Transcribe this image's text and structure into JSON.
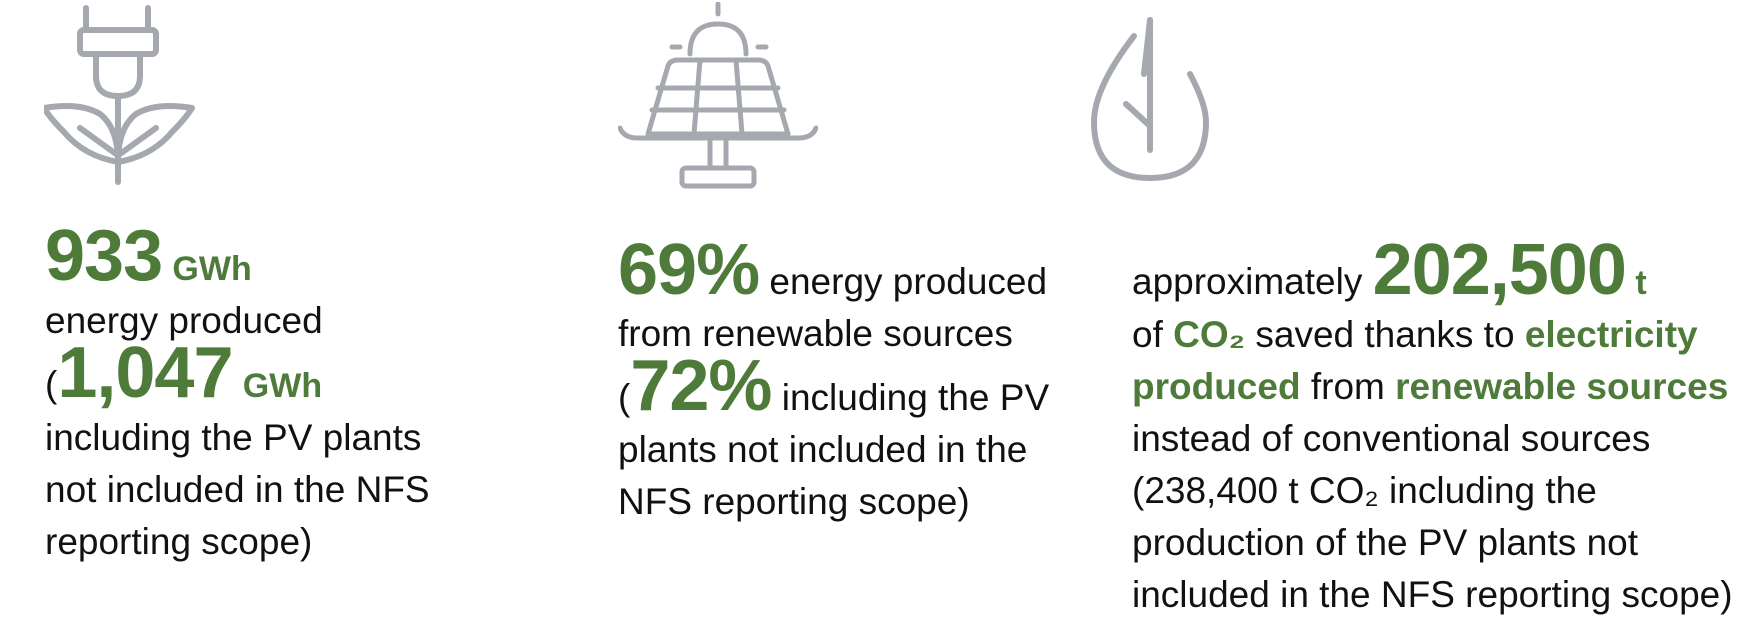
{
  "colors": {
    "accent": "#4e7a3a",
    "icon_gray": "#a5a9af",
    "text": "#111111"
  },
  "icons": [
    "plug-leaf-icon",
    "solar-panel-icon",
    "water-drop-icon"
  ],
  "col1": {
    "value": "933",
    "unit": "GWh",
    "line2": "energy produced",
    "open": "(",
    "value2": "1,047",
    "unit2": "GWh",
    "line4": "including the PV plants",
    "line5": "not included in the NFS",
    "line6": "reporting scope)"
  },
  "col2": {
    "value": "69%",
    "line1_text": " energy produced",
    "line2": "from renewable sources",
    "open": "(",
    "value2": "72%",
    "line3_text": " including the PV",
    "line4": "plants not included in the",
    "line5": "NFS reporting scope)"
  },
  "col3": {
    "pre": "approximately ",
    "value": "202,500",
    "unit": " t",
    "of": "of ",
    "co2": "CO₂",
    "saved": " saved thanks to ",
    "electricity": "electricity",
    "produced": "produced",
    "from": " from ",
    "renewable": "renewable sources",
    "line4": "instead of conventional sources",
    "line5": "(238,400 t CO₂ including the",
    "line6": "production of the PV plants not",
    "line7": "included in the NFS reporting scope)"
  }
}
